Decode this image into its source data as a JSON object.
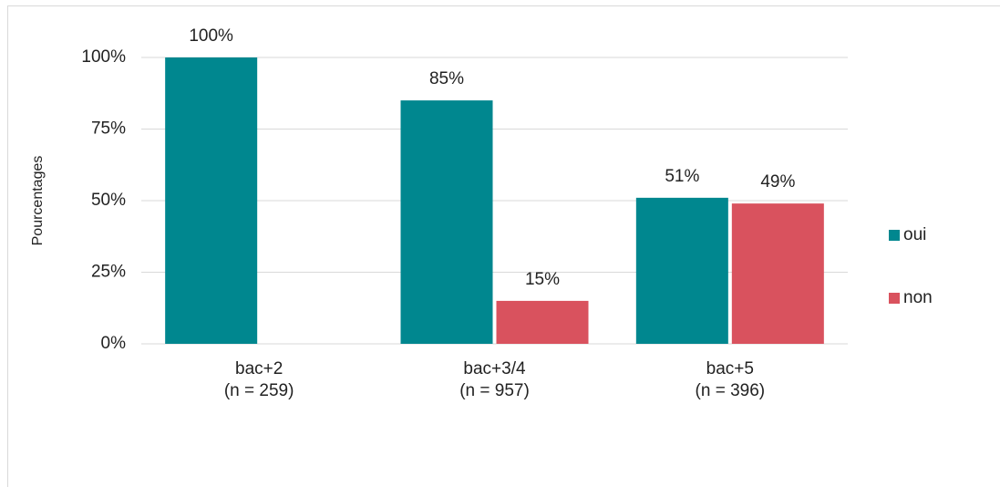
{
  "chart_data": {
    "type": "bar",
    "y_label": "Pourcentages",
    "categories": [
      "bac+2\n(n = 259)",
      "bac+3/4\n(n = 957)",
      "bac+5\n(n = 396)"
    ],
    "series": [
      {
        "name": "oui",
        "color": "#00878f",
        "values": [
          100,
          85,
          51
        ],
        "value_labels": [
          "100%",
          "85%",
          "51%"
        ]
      },
      {
        "name": "non",
        "color": "#d9525e",
        "values": [
          null,
          15,
          49
        ],
        "value_labels": [
          null,
          "15%",
          "49%"
        ]
      }
    ],
    "ylim": [
      0,
      100
    ],
    "yticks": [
      {
        "value": 0,
        "label": "0%"
      },
      {
        "value": 25,
        "label": "25%"
      },
      {
        "value": 50,
        "label": "50%"
      },
      {
        "value": 75,
        "label": "75%"
      },
      {
        "value": 100,
        "label": "100%"
      }
    ],
    "grid": true,
    "legend": "right"
  }
}
